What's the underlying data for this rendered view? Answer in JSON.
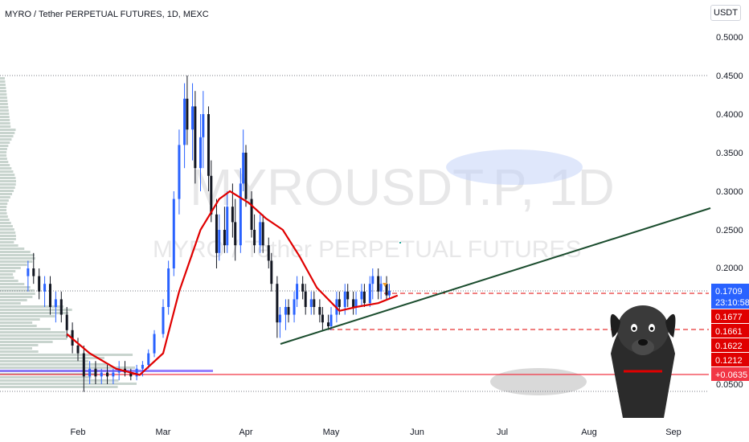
{
  "header": {
    "symbol_title": "MYRO / Tether PERPETUAL FUTURES, 1D, MEXC",
    "unit_button": "USDT"
  },
  "watermark": {
    "ticker": "MYROUSDT.P, 1D",
    "description": "MYRO / Tether PERPETUAL FUTURES"
  },
  "chart_data": {
    "type": "candlestick",
    "symbol": "MYROUSDT.P",
    "timeframe": "1D",
    "exchange": "MEXC",
    "x_ticks": [
      "Feb",
      "Mar",
      "Apr",
      "May",
      "Jun",
      "Jul",
      "Aug",
      "Sep"
    ],
    "y_ticks": [
      "0.5000",
      "0.4500",
      "0.4000",
      "0.3500",
      "0.3000",
      "0.2500",
      "0.2000",
      "0.0500"
    ],
    "ylim": [
      0.03,
      0.52
    ],
    "grid": false,
    "price_labels": [
      {
        "text": "0.1709",
        "color": "#2962ff",
        "value": 0.1709
      },
      {
        "text": "23:10:58",
        "color": "#2962ff",
        "value": 0.1709,
        "note": "countdown"
      },
      {
        "text": "0.1677",
        "color": "#e00000",
        "value": 0.1677
      },
      {
        "text": "0.1661",
        "color": "#e00000",
        "value": 0.1661
      },
      {
        "text": "0.1622",
        "color": "#e00000",
        "value": 0.1622
      },
      {
        "text": "0.1212",
        "color": "#e00000",
        "value": 0.1212
      },
      {
        "text": "+0.0635",
        "color": "#f23645",
        "value": 0.0635
      }
    ],
    "horizontal_levels": [
      {
        "value": 0.1709,
        "style": "dotted",
        "color": "#787b86"
      },
      {
        "value": 0.1677,
        "style": "dashed",
        "color": "#e00000"
      },
      {
        "value": 0.1212,
        "style": "dashed",
        "color": "#e00000"
      },
      {
        "value": 0.0635,
        "style": "solid",
        "color": "#f23645"
      },
      {
        "value": 0.45,
        "style": "dotted",
        "color": "#787b86"
      },
      {
        "value": 0.05,
        "style": "dotted",
        "color": "#787b86"
      }
    ],
    "trendline": {
      "from": {
        "x": "Apr 12",
        "y": 0.105
      },
      "to": {
        "x": "Sep 5",
        "y": 0.2775
      },
      "color": "#1b4d2e"
    },
    "moving_average": {
      "color": "#e00000",
      "points": [
        [
          "Jan 28",
          0.115
        ],
        [
          "Feb 5",
          0.09
        ],
        [
          "Feb 14",
          0.07
        ],
        [
          "Feb 22",
          0.062
        ],
        [
          "Mar 1",
          0.09
        ],
        [
          "Mar 7",
          0.17
        ],
        [
          "Mar 15",
          0.25
        ],
        [
          "Mar 22",
          0.29
        ],
        [
          "Mar 26",
          0.3
        ],
        [
          "Apr 2",
          0.285
        ],
        [
          "Apr 8",
          0.265
        ],
        [
          "Apr 14",
          0.25
        ],
        [
          "Apr 20",
          0.215
        ],
        [
          "Apr 26",
          0.175
        ],
        [
          "May 4",
          0.145
        ],
        [
          "May 10",
          0.15
        ],
        [
          "May 18",
          0.155
        ],
        [
          "May 25",
          0.165
        ]
      ]
    },
    "candles": [
      [
        "Jan 14",
        0.19,
        0.21,
        0.17,
        0.2
      ],
      [
        "Jan 16",
        0.2,
        0.22,
        0.18,
        0.19
      ],
      [
        "Jan 18",
        0.19,
        0.2,
        0.16,
        0.17
      ],
      [
        "Jan 20",
        0.17,
        0.19,
        0.15,
        0.18
      ],
      [
        "Jan 22",
        0.18,
        0.19,
        0.14,
        0.15
      ],
      [
        "Jan 24",
        0.15,
        0.17,
        0.13,
        0.16
      ],
      [
        "Jan 26",
        0.16,
        0.17,
        0.13,
        0.14
      ],
      [
        "Jan 28",
        0.14,
        0.15,
        0.11,
        0.12
      ],
      [
        "Jan 30",
        0.12,
        0.13,
        0.09,
        0.1
      ],
      [
        "Feb 1",
        0.1,
        0.11,
        0.08,
        0.09
      ],
      [
        "Feb 3",
        0.09,
        0.1,
        0.04,
        0.06
      ],
      [
        "Feb 5",
        0.06,
        0.08,
        0.05,
        0.07
      ],
      [
        "Feb 7",
        0.07,
        0.08,
        0.05,
        0.06
      ],
      [
        "Feb 9",
        0.06,
        0.07,
        0.05,
        0.065
      ],
      [
        "Feb 11",
        0.065,
        0.075,
        0.05,
        0.06
      ],
      [
        "Feb 13",
        0.06,
        0.07,
        0.05,
        0.065
      ],
      [
        "Feb 15",
        0.065,
        0.08,
        0.055,
        0.07
      ],
      [
        "Feb 17",
        0.07,
        0.08,
        0.06,
        0.065
      ],
      [
        "Feb 19",
        0.065,
        0.07,
        0.055,
        0.06
      ],
      [
        "Feb 21",
        0.06,
        0.075,
        0.055,
        0.07
      ],
      [
        "Feb 23",
        0.07,
        0.08,
        0.06,
        0.075
      ],
      [
        "Feb 25",
        0.075,
        0.095,
        0.07,
        0.09
      ],
      [
        "Feb 27",
        0.09,
        0.12,
        0.085,
        0.115
      ],
      [
        "Mar 1",
        0.115,
        0.16,
        0.11,
        0.15
      ],
      [
        "Mar 3",
        0.15,
        0.21,
        0.14,
        0.2
      ],
      [
        "Mar 5",
        0.2,
        0.3,
        0.19,
        0.29
      ],
      [
        "Mar 7",
        0.29,
        0.38,
        0.27,
        0.36
      ],
      [
        "Mar 9",
        0.36,
        0.44,
        0.33,
        0.42
      ],
      [
        "Mar 10",
        0.42,
        0.45,
        0.36,
        0.38
      ],
      [
        "Mar 12",
        0.38,
        0.44,
        0.34,
        0.41
      ],
      [
        "Mar 13",
        0.41,
        0.43,
        0.31,
        0.33
      ],
      [
        "Mar 15",
        0.33,
        0.4,
        0.3,
        0.37
      ],
      [
        "Mar 16",
        0.37,
        0.43,
        0.33,
        0.4
      ],
      [
        "Mar 18",
        0.4,
        0.41,
        0.3,
        0.32
      ],
      [
        "Mar 19",
        0.32,
        0.34,
        0.26,
        0.27
      ],
      [
        "Mar 21",
        0.27,
        0.29,
        0.2,
        0.22
      ],
      [
        "Mar 22",
        0.22,
        0.27,
        0.21,
        0.25
      ],
      [
        "Mar 24",
        0.25,
        0.28,
        0.22,
        0.23
      ],
      [
        "Mar 25",
        0.23,
        0.3,
        0.22,
        0.28
      ],
      [
        "Mar 27",
        0.28,
        0.31,
        0.24,
        0.26
      ],
      [
        "Mar 28",
        0.26,
        0.29,
        0.21,
        0.23
      ],
      [
        "Mar 30",
        0.23,
        0.33,
        0.22,
        0.31
      ],
      [
        "Mar 31",
        0.31,
        0.38,
        0.3,
        0.35
      ],
      [
        "Apr 1",
        0.35,
        0.36,
        0.28,
        0.29
      ],
      [
        "Apr 3",
        0.29,
        0.3,
        0.24,
        0.25
      ],
      [
        "Apr 4",
        0.25,
        0.27,
        0.22,
        0.23
      ],
      [
        "Apr 6",
        0.23,
        0.27,
        0.22,
        0.26
      ],
      [
        "Apr 7",
        0.26,
        0.27,
        0.22,
        0.23
      ],
      [
        "Apr 9",
        0.23,
        0.24,
        0.2,
        0.21
      ],
      [
        "Apr 10",
        0.21,
        0.22,
        0.17,
        0.18
      ],
      [
        "Apr 12",
        0.18,
        0.19,
        0.11,
        0.13
      ],
      [
        "Apr 13",
        0.13,
        0.15,
        0.11,
        0.14
      ],
      [
        "Apr 15",
        0.14,
        0.16,
        0.12,
        0.15
      ],
      [
        "Apr 16",
        0.15,
        0.16,
        0.13,
        0.14
      ],
      [
        "Apr 18",
        0.14,
        0.17,
        0.13,
        0.16
      ],
      [
        "Apr 19",
        0.16,
        0.19,
        0.15,
        0.18
      ],
      [
        "Apr 21",
        0.18,
        0.19,
        0.16,
        0.17
      ],
      [
        "Apr 22",
        0.17,
        0.18,
        0.14,
        0.15
      ],
      [
        "Apr 24",
        0.15,
        0.17,
        0.14,
        0.16
      ],
      [
        "Apr 25",
        0.16,
        0.17,
        0.14,
        0.15
      ],
      [
        "Apr 27",
        0.15,
        0.16,
        0.13,
        0.14
      ],
      [
        "Apr 28",
        0.14,
        0.15,
        0.12,
        0.13
      ],
      [
        "Apr 30",
        0.13,
        0.14,
        0.12,
        0.125
      ],
      [
        "May 1",
        0.125,
        0.15,
        0.12,
        0.14
      ],
      [
        "May 3",
        0.14,
        0.17,
        0.13,
        0.16
      ],
      [
        "May 4",
        0.16,
        0.17,
        0.14,
        0.15
      ],
      [
        "May 6",
        0.15,
        0.18,
        0.14,
        0.17
      ],
      [
        "May 7",
        0.17,
        0.18,
        0.15,
        0.16
      ],
      [
        "May 9",
        0.16,
        0.17,
        0.14,
        0.15
      ],
      [
        "May 10",
        0.15,
        0.17,
        0.14,
        0.16
      ],
      [
        "May 12",
        0.16,
        0.18,
        0.15,
        0.17
      ],
      [
        "May 13",
        0.17,
        0.18,
        0.15,
        0.155
      ],
      [
        "May 15",
        0.155,
        0.19,
        0.15,
        0.18
      ],
      [
        "May 16",
        0.18,
        0.2,
        0.16,
        0.19
      ],
      [
        "May 18",
        0.19,
        0.2,
        0.16,
        0.17
      ],
      [
        "May 19",
        0.17,
        0.19,
        0.16,
        0.18
      ],
      [
        "May 21",
        0.18,
        0.19,
        0.16,
        0.165
      ],
      [
        "May 22",
        0.165,
        0.18,
        0.16,
        0.171
      ]
    ]
  },
  "volume_profile_color": "#9ab0a6",
  "annotations": {
    "blue_ellipse_color": "#c4d3f7",
    "gray_ellipse_color": "#cfcfcf",
    "sticker": "black-dog-illustration"
  }
}
